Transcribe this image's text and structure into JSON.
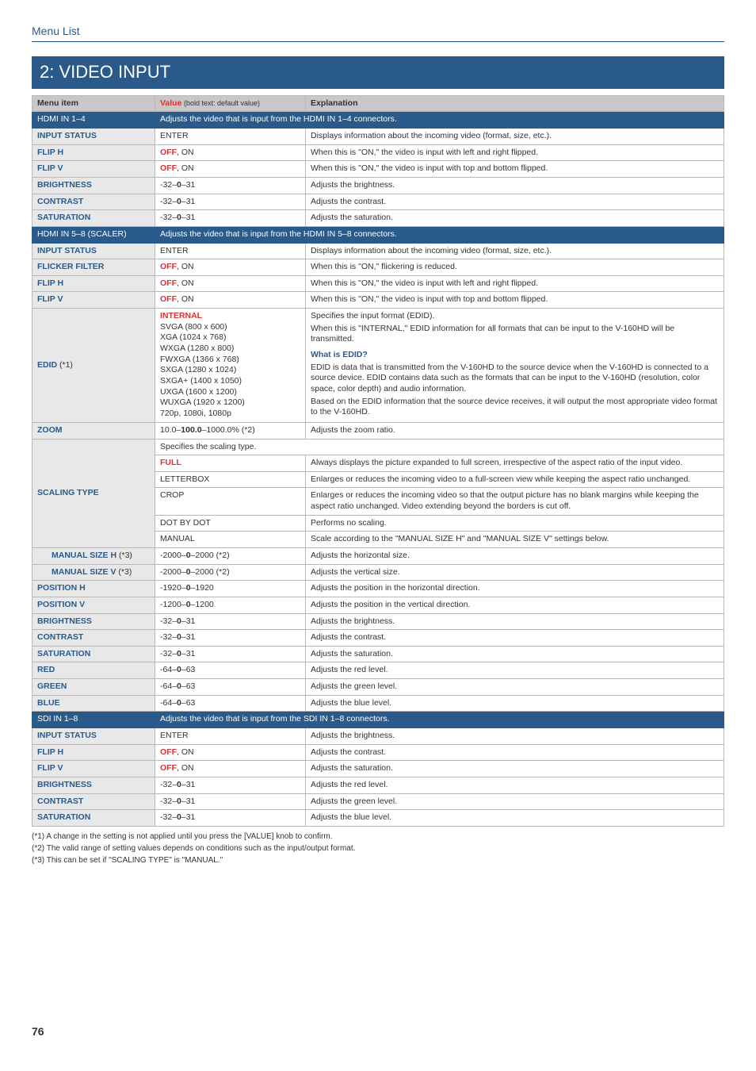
{
  "header": {
    "menu_list": "Menu List",
    "section": "2: VIDEO INPUT"
  },
  "columns": {
    "item": "Menu item",
    "value": "Value",
    "value_note": " (bold text: default value)",
    "expl": "Explanation"
  },
  "bands": {
    "hdmi14": {
      "title": "HDMI IN 1–4",
      "desc": "Adjusts the video that is input from the HDMI IN 1–4 connectors."
    },
    "hdmi58": {
      "title": "HDMI IN 5–8 (SCALER)",
      "desc": "Adjusts the video that is input from the HDMI IN 5–8 connectors."
    },
    "sdi18": {
      "title": "SDI IN 1–8",
      "desc": "Adjusts the video that is input from the SDI IN 1–8 connectors."
    }
  },
  "r": {
    "h14_input_status": {
      "l": "INPUT STATUS",
      "v": "ENTER",
      "e": "Displays information about the incoming video (format, size, etc.)."
    },
    "h14_fliph": {
      "l": "FLIP H",
      "vb": "OFF",
      "vr": ", ON",
      "e": "When this is \"ON,\" the video is input with left and right flipped."
    },
    "h14_flipv": {
      "l": "FLIP V",
      "vb": "OFF",
      "vr": ", ON",
      "e": "When this is \"ON,\" the video is input with top and bottom flipped."
    },
    "h14_bright": {
      "l": "BRIGHTNESS",
      "vp": "-32–",
      "vb": "0",
      "vr": "–31",
      "e": "Adjusts the brightness."
    },
    "h14_contrast": {
      "l": "CONTRAST",
      "vp": "-32–",
      "vb": "0",
      "vr": "–31",
      "e": "Adjusts the contrast."
    },
    "h14_sat": {
      "l": "SATURATION",
      "vp": "-32–",
      "vb": "0",
      "vr": "–31",
      "e": "Adjusts the saturation."
    },
    "h58_input_status": {
      "l": "INPUT STATUS",
      "v": "ENTER",
      "e": "Displays information about the incoming video (format, size, etc.)."
    },
    "h58_flicker": {
      "l": "FLICKER FILTER",
      "vb": "OFF",
      "vr": ", ON",
      "e": "When this is \"ON,\" flickering is reduced."
    },
    "h58_fliph": {
      "l": "FLIP H",
      "vb": "OFF",
      "vr": ", ON",
      "e": "When this is \"ON,\" the video is input with left and right flipped."
    },
    "h58_flipv": {
      "l": "FLIP V",
      "vb": "OFF",
      "vr": ", ON",
      "e": "When this is \"ON,\" the video is input with top and bottom flipped."
    },
    "edid_label": "EDID",
    "edid_label_suffix": " (*1)",
    "edid_vals": {
      "v0": "INTERNAL",
      "v1": "SVGA (800 x 600)",
      "v2": "XGA (1024 x 768)",
      "v3": "WXGA (1280 x 800)",
      "v4": "FWXGA (1366 x 768)",
      "v5": "SXGA (1280 x 1024)",
      "v6": "SXGA+ (1400 x 1050)",
      "v7": "UXGA (1600 x 1200)",
      "v8": "WUXGA (1920 x 1200)",
      "v9": "720p, 1080i, 1080p"
    },
    "edid_expl": {
      "p0": "Specifies the input format (EDID).",
      "p1": "When this is \"INTERNAL,\" EDID information for all formats that can be input to the V-160HD will be transmitted.",
      "what": "What is EDID?",
      "p2": "EDID is data that is transmitted from the V-160HD to the source device when the V-160HD is connected to a source device. EDID contains data such as the formats that can be input to the V-160HD (resolution, color space, color depth) and audio information.",
      "p3": "Based on the EDID information that the source device receives, it will output the most appropriate video format to the V-160HD."
    },
    "zoom": {
      "l": "ZOOM",
      "vp": "10.0–",
      "vb": "100.0",
      "vr": "–1000.0% (*2)",
      "e": "Adjusts the zoom ratio."
    },
    "scaling_label": "SCALING TYPE",
    "scaling_intro": "Specifies the scaling type.",
    "scaling_full": {
      "v": "FULL",
      "e": "Always displays the picture expanded to full screen, irrespective of the aspect ratio of the input video."
    },
    "scaling_letter": {
      "v": "LETTERBOX",
      "e": "Enlarges or reduces the incoming video to a full-screen view while keeping the aspect ratio unchanged."
    },
    "scaling_crop": {
      "v": "CROP",
      "e": "Enlarges or reduces the incoming video so that the output picture has no blank margins while keeping the aspect ratio unchanged. Video extending beyond the borders is cut off."
    },
    "scaling_dot": {
      "v": "DOT BY DOT",
      "e": "Performs no scaling."
    },
    "scaling_manual": {
      "v": "MANUAL",
      "e": "Scale according to the \"MANUAL SIZE H\" and \"MANUAL SIZE V\" settings below."
    },
    "msh": {
      "l": "MANUAL SIZE H",
      "ls": " (*3)",
      "vp": "-2000–",
      "vb": "0",
      "vr": "–2000 (*2)",
      "e": "Adjusts the horizontal size."
    },
    "msv": {
      "l": "MANUAL SIZE V",
      "ls": " (*3)",
      "vp": "-2000–",
      "vb": "0",
      "vr": "–2000 (*2)",
      "e": "Adjusts the vertical size."
    },
    "posh": {
      "l": "POSITION H",
      "vp": "-1920–",
      "vb": "0",
      "vr": "–1920",
      "e": "Adjusts the position in the horizontal direction."
    },
    "posv": {
      "l": "POSITION V",
      "vp": "-1200–",
      "vb": "0",
      "vr": "–1200",
      "e": "Adjusts the position in the vertical direction."
    },
    "bright2": {
      "l": "BRIGHTNESS",
      "vp": "-32–",
      "vb": "0",
      "vr": "–31",
      "e": "Adjusts the brightness."
    },
    "contrast2": {
      "l": "CONTRAST",
      "vp": "-32–",
      "vb": "0",
      "vr": "–31",
      "e": "Adjusts the contrast."
    },
    "sat2": {
      "l": "SATURATION",
      "vp": "-32–",
      "vb": "0",
      "vr": "–31",
      "e": "Adjusts the saturation."
    },
    "red": {
      "l": "RED",
      "vp": "-64–",
      "vb": "0",
      "vr": "–63",
      "e": "Adjusts the red level."
    },
    "green": {
      "l": "GREEN",
      "vp": "-64–",
      "vb": "0",
      "vr": "–63",
      "e": "Adjusts the green level."
    },
    "blue": {
      "l": "BLUE",
      "vp": "-64–",
      "vb": "0",
      "vr": "–63",
      "e": "Adjusts the blue level."
    },
    "sdi_input_status": {
      "l": "INPUT STATUS",
      "v": "ENTER",
      "e": "Adjusts the brightness."
    },
    "sdi_fliph": {
      "l": "FLIP H",
      "vb": "OFF",
      "vr": ", ON",
      "e": "Adjusts the contrast."
    },
    "sdi_flipv": {
      "l": "FLIP V",
      "vb": "OFF",
      "vr": ", ON",
      "e": "Adjusts the saturation."
    },
    "sdi_bright": {
      "l": "BRIGHTNESS",
      "vp": "-32–",
      "vb": "0",
      "vr": "–31",
      "e": "Adjusts the red level."
    },
    "sdi_contrast": {
      "l": "CONTRAST",
      "vp": "-32–",
      "vb": "0",
      "vr": "–31",
      "e": "Adjusts the green level."
    },
    "sdi_sat": {
      "l": "SATURATION",
      "vp": "-32–",
      "vb": "0",
      "vr": "–31",
      "e": "Adjusts the blue level."
    }
  },
  "notes": {
    "n1": "(*1) A change in the setting is not applied until you press the [VALUE] knob to confirm.",
    "n2": "(*2) The valid range of setting values depends on conditions such as the input/output format.",
    "n3": "(*3) This can be set if \"SCALING TYPE\" is \"MANUAL.\""
  },
  "pagenum": "76"
}
